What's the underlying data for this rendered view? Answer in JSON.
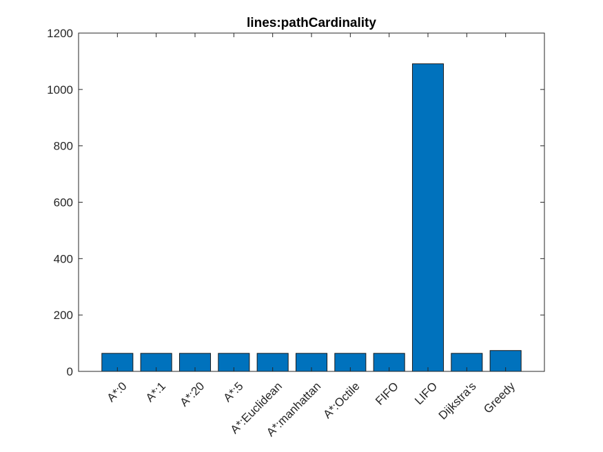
{
  "chart_data": {
    "type": "bar",
    "title": "lines:pathCardinality",
    "xlabel": "",
    "ylabel": "",
    "categories": [
      "A*:0",
      "A*:1",
      "A*:20",
      "A*:5",
      "A*:Euclidean",
      "A*:manhattan",
      "A*:Octile",
      "FIFO",
      "LIFO",
      "Dijkstra's",
      "Greedy"
    ],
    "values": [
      64,
      64,
      64,
      64,
      64,
      64,
      64,
      64,
      1091,
      64,
      74
    ],
    "ylim": [
      0,
      1200
    ],
    "yticks": [
      0,
      200,
      400,
      600,
      800,
      1000,
      1200
    ],
    "grid": false,
    "colors": {
      "bar": "#0072BD",
      "edge": "#1a1a1a",
      "axis": "#262626"
    }
  }
}
